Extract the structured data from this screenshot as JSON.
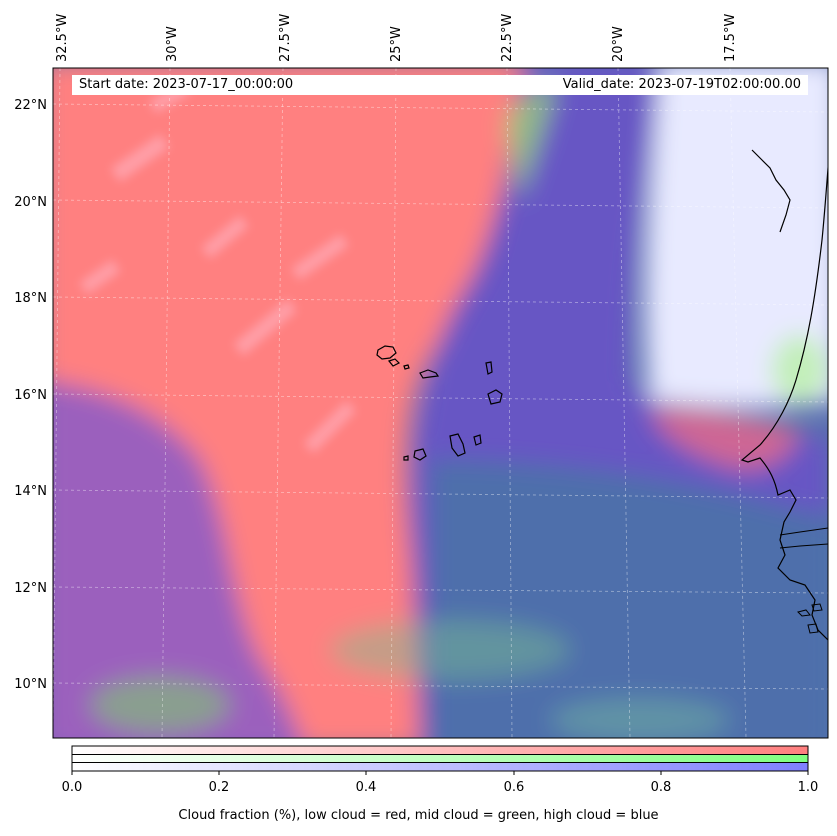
{
  "map": {
    "start_date": "Start date: 2023-07-17_00:00:00",
    "valid_date": "Valid_date: 2023-07-19T02:00:00.00",
    "lon_ticks": [
      "32.5°W",
      "30°W",
      "27.5°W",
      "25°W",
      "22.5°W",
      "20°W",
      "17.5°W"
    ],
    "lat_ticks": [
      "22°N",
      "20°N",
      "18°N",
      "16°N",
      "14°N",
      "12°N",
      "10°N"
    ],
    "gridlines": true,
    "layers": [
      {
        "name": "low cloud",
        "color": "#ff7f7f"
      },
      {
        "name": "mid cloud",
        "color": "#7fff7f"
      },
      {
        "name": "high cloud",
        "color": "#7f7fff"
      }
    ]
  },
  "colorbar": {
    "ticks": [
      "0.0",
      "0.2",
      "0.4",
      "0.6",
      "0.8",
      "1.0"
    ],
    "label": "Cloud fraction (%), low cloud = red, mid cloud = green, high cloud = blue"
  }
}
